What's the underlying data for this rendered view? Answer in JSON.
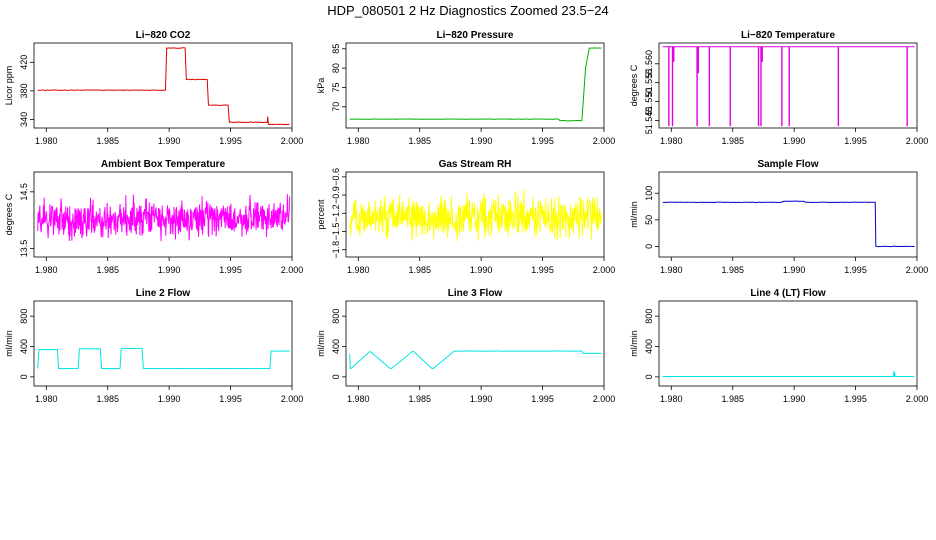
{
  "figure": {
    "title": "HDP_080501  2 Hz Diagnostics Zoomed 23.5−24"
  },
  "chart_data": [
    {
      "type": "line",
      "title": "Li−820 CO2",
      "xlabel": "",
      "ylabel": "Licor ppm",
      "xlim": [
        1.979,
        2.0
      ],
      "ylim": [
        328,
        447
      ],
      "xticks": [
        "1.980",
        "1.985",
        "1.990",
        "1.995",
        "2.000"
      ],
      "yticks": [
        {
          "v": 340,
          "label": "340"
        },
        {
          "v": 380,
          "label": "380"
        },
        {
          "v": 420,
          "label": "420"
        }
      ],
      "color": "#e00000",
      "noise": 0.8,
      "series": [
        {
          "x": [
            1.9793,
            1.9897,
            1.9898,
            1.9913,
            1.9914,
            1.9931,
            1.9932,
            1.9948,
            1.9949,
            1.998,
            1.99802,
            1.99806,
            1.9981,
            1.9998
          ],
          "y": [
            381,
            381,
            440,
            440,
            396,
            396,
            360,
            360,
            336,
            336,
            344,
            336,
            333,
            333
          ]
        }
      ]
    },
    {
      "type": "line",
      "title": "Li−820 Pressure",
      "xlabel": "",
      "ylabel": "kPa",
      "xlim": [
        1.979,
        2.0
      ],
      "ylim": [
        64.5,
        86.5
      ],
      "xticks": [
        "1.980",
        "1.985",
        "1.990",
        "1.995",
        "2.000"
      ],
      "yticks": [
        {
          "v": 70,
          "label": "70"
        },
        {
          "v": 75,
          "label": "75"
        },
        {
          "v": 80,
          "label": "80"
        },
        {
          "v": 85,
          "label": "85"
        }
      ],
      "color": "#00b000",
      "noise": 0.1,
      "series": [
        {
          "x": [
            1.9793,
            1.9963,
            1.9964,
            1.9982,
            1.9985,
            1.9988,
            1.9998
          ],
          "y": [
            66.8,
            66.8,
            66.4,
            66.4,
            80,
            85.2,
            85.2
          ]
        }
      ]
    },
    {
      "type": "line",
      "title": "Li−820 Temperature",
      "xlabel": "",
      "ylabel": "degrees C",
      "xlim": [
        1.979,
        2.0
      ],
      "ylim": [
        51.543,
        51.5655
      ],
      "xticks": [
        "1.980",
        "1.985",
        "1.990",
        "1.995",
        "2.000"
      ],
      "yticks": [
        {
          "v": 51.545,
          "label": "51.545"
        },
        {
          "v": 51.55,
          "label": "51.550"
        },
        {
          "v": 51.555,
          "label": "51.555"
        },
        {
          "v": 51.56,
          "label": "51.560"
        }
      ],
      "color": "#e000e0",
      "noise": 0,
      "series": [
        {
          "x": [
            1.9793,
            1.9998
          ],
          "y": [
            51.5645,
            51.5645
          ]
        }
      ],
      "spikes": [
        {
          "x": 1.9798,
          "y": 51.5435
        },
        {
          "x": 1.9801,
          "y": 51.5435
        },
        {
          "x": 1.9802,
          "y": 51.5605
        },
        {
          "x": 1.9821,
          "y": 51.5435
        },
        {
          "x": 1.9822,
          "y": 51.5575
        },
        {
          "x": 1.9831,
          "y": 51.5435
        },
        {
          "x": 1.9848,
          "y": 51.5435
        },
        {
          "x": 1.9871,
          "y": 51.5435
        },
        {
          "x": 1.9873,
          "y": 51.5435
        },
        {
          "x": 1.9874,
          "y": 51.5605
        },
        {
          "x": 1.989,
          "y": 51.5435
        },
        {
          "x": 1.9896,
          "y": 51.5435
        },
        {
          "x": 1.9936,
          "y": 51.5435
        },
        {
          "x": 1.9992,
          "y": 51.5435
        }
      ]
    },
    {
      "type": "line",
      "title": "Ambient Box Temperature",
      "xlabel": "",
      "ylabel": "degrees C",
      "xlim": [
        1.979,
        2.0
      ],
      "ylim": [
        13.35,
        14.85
      ],
      "xticks": [
        "1.980",
        "1.985",
        "1.990",
        "1.995",
        "2.000"
      ],
      "yticks": [
        {
          "v": 13.5,
          "label": "13.5"
        },
        {
          "v": 14.5,
          "label": "14.5"
        }
      ],
      "color": "#ff00ff",
      "noise": 0.2,
      "dense": true,
      "series": [
        {
          "x": [
            1.9793,
            1.9998
          ],
          "y": [
            14.0,
            14.05
          ]
        }
      ]
    },
    {
      "type": "line",
      "title": "Gas Stream RH",
      "xlabel": "",
      "ylabel": "percent",
      "xlim": [
        1.979,
        2.0
      ],
      "ylim": [
        -1.92,
        -0.52
      ],
      "xticks": [
        "1.980",
        "1.985",
        "1.990",
        "1.995",
        "2.000"
      ],
      "yticks": [
        {
          "v": -1.8,
          "label": "−1.8"
        },
        {
          "v": -1.5,
          "label": "−1.5"
        },
        {
          "v": -1.2,
          "label": "−1.2"
        },
        {
          "v": -0.9,
          "label": "−0.9"
        },
        {
          "v": -0.6,
          "label": "−0.6"
        }
      ],
      "color": "#ffff00",
      "noise": 0.2,
      "dense": true,
      "series": [
        {
          "x": [
            1.9793,
            1.9998
          ],
          "y": [
            -1.28,
            -1.24
          ]
        }
      ]
    },
    {
      "type": "line",
      "title": "Sample Flow",
      "xlabel": "",
      "ylabel": "ml/min",
      "xlim": [
        1.979,
        2.0
      ],
      "ylim": [
        -20,
        140
      ],
      "xticks": [
        "1.980",
        "1.985",
        "1.990",
        "1.995",
        "2.000"
      ],
      "yticks": [
        {
          "v": 0,
          "label": "0"
        },
        {
          "v": 50,
          "label": "50"
        },
        {
          "v": 100,
          "label": "100"
        }
      ],
      "color": "#0000cc",
      "noise": 0.8,
      "series": [
        {
          "x": [
            1.9793,
            1.989,
            1.9891,
            1.9908,
            1.9909,
            1.9966,
            1.99665,
            1.9998
          ],
          "y": [
            83,
            83,
            85,
            85,
            83,
            83,
            0,
            0
          ]
        }
      ]
    },
    {
      "type": "line",
      "title": "Line 2 Flow",
      "xlabel": "",
      "ylabel": "ml/min",
      "xlim": [
        1.979,
        2.0
      ],
      "ylim": [
        -120,
        1000
      ],
      "xticks": [
        "1.980",
        "1.985",
        "1.990",
        "1.995",
        "2.000"
      ],
      "yticks": [
        {
          "v": 0,
          "label": "0"
        },
        {
          "v": 400,
          "label": "400"
        },
        {
          "v": 800,
          "label": "800"
        }
      ],
      "color": "#00e5e5",
      "noise": 3,
      "series": [
        {
          "x": [
            1.9793,
            1.9794,
            1.9809,
            1.981,
            1.9826,
            1.9827,
            1.9844,
            1.9845,
            1.986,
            1.9861,
            1.9878,
            1.9879,
            1.9982,
            1.9983,
            1.9998
          ],
          "y": [
            110,
            360,
            360,
            110,
            110,
            370,
            370,
            110,
            110,
            375,
            375,
            110,
            110,
            340,
            340
          ]
        }
      ]
    },
    {
      "type": "line",
      "title": "Line 3 Flow",
      "xlabel": "",
      "ylabel": "ml/min",
      "xlim": [
        1.979,
        2.0
      ],
      "ylim": [
        -120,
        1000
      ],
      "xticks": [
        "1.980",
        "1.985",
        "1.990",
        "1.995",
        "2.000"
      ],
      "yticks": [
        {
          "v": 0,
          "label": "0"
        },
        {
          "v": 400,
          "label": "400"
        },
        {
          "v": 800,
          "label": "800"
        }
      ],
      "color": "#00e5e5",
      "noise": 3,
      "series": [
        {
          "x": [
            1.9793,
            1.97935,
            1.9794,
            1.9809,
            1.981,
            1.9826,
            1.9827,
            1.9844,
            1.9845,
            1.986,
            1.9861,
            1.9878,
            1.9879,
            1.9982,
            1.9983,
            1.9998
          ],
          "y": [
            300,
            110,
            110,
            330,
            330,
            110,
            110,
            335,
            335,
            110,
            110,
            340,
            340,
            340,
            310,
            310
          ]
        }
      ]
    },
    {
      "type": "line",
      "title": "Line 4 (LT) Flow",
      "xlabel": "",
      "ylabel": "ml/min",
      "xlim": [
        1.979,
        2.0
      ],
      "ylim": [
        -120,
        1000
      ],
      "xticks": [
        "1.980",
        "1.985",
        "1.990",
        "1.995",
        "2.000"
      ],
      "yticks": [
        {
          "v": 0,
          "label": "0"
        },
        {
          "v": 400,
          "label": "400"
        },
        {
          "v": 800,
          "label": "800"
        }
      ],
      "color": "#00e5e5",
      "noise": 1,
      "series": [
        {
          "x": [
            1.9793,
            1.9981,
            1.99812,
            1.99815,
            1.99818,
            1.99822,
            1.9998
          ],
          "y": [
            5,
            5,
            80,
            10,
            60,
            5,
            5
          ]
        }
      ]
    }
  ]
}
